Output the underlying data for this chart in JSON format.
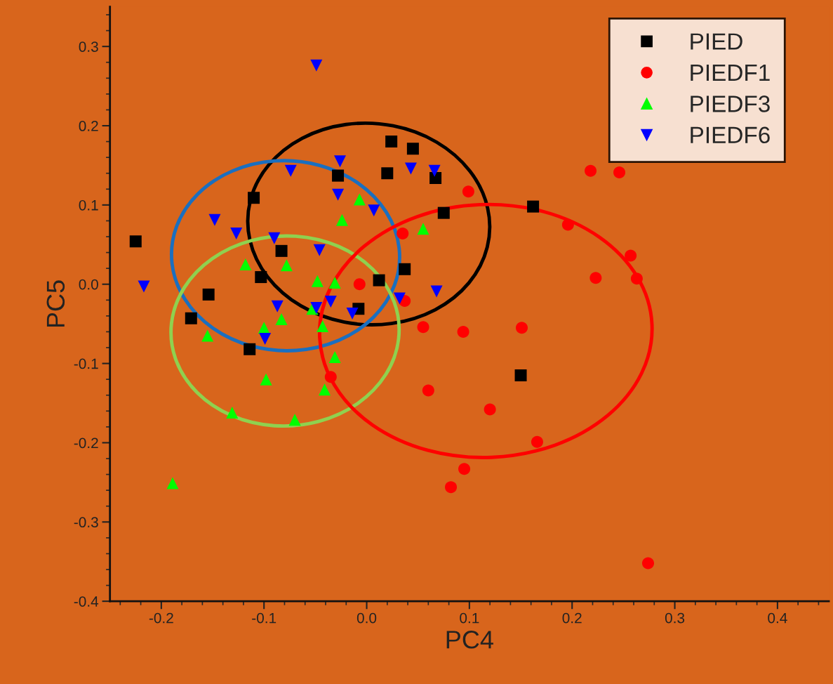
{
  "chart_data": {
    "type": "scatter",
    "xlabel": "PC4",
    "ylabel": "PC5",
    "xlim": [
      -0.25,
      0.45
    ],
    "ylim": [
      -0.4,
      0.35
    ],
    "xticks": [
      -0.2,
      -0.1,
      {
        "value": 0,
        "label": "0.0"
      },
      0.1,
      0.2,
      0.3,
      0.4
    ],
    "yticks": [
      -0.4,
      -0.3,
      -0.2,
      -0.1,
      {
        "value": 0,
        "label": "0.0"
      },
      0.1,
      0.2,
      0.3
    ],
    "grid": false,
    "legend": "top right",
    "series": [
      {
        "name": "PIED",
        "color": "#000000",
        "marker": "square",
        "x": [
          -0.225,
          -0.11,
          -0.083,
          -0.103,
          -0.154,
          -0.171,
          -0.114,
          -0.028,
          0.02,
          0.024,
          0.045,
          0.067,
          0.075,
          0.037,
          0.012,
          -0.008,
          0.15,
          0.162
        ],
        "values": [
          0.054,
          0.109,
          0.042,
          0.009,
          -0.013,
          -0.043,
          -0.082,
          0.137,
          0.14,
          0.18,
          0.171,
          0.134,
          0.09,
          0.019,
          0.005,
          -0.031,
          -0.115,
          0.098
        ]
      },
      {
        "name": "PIEDF1",
        "color": "#ff0000",
        "marker": "circle",
        "x": [
          0.099,
          0.035,
          -0.007,
          0.037,
          0.055,
          0.06,
          0.094,
          0.151,
          0.12,
          0.166,
          0.095,
          0.082,
          -0.035,
          0.196,
          0.218,
          0.246,
          0.257,
          0.263,
          0.223,
          0.274
        ],
        "values": [
          0.117,
          0.064,
          0.0,
          -0.021,
          -0.054,
          -0.134,
          -0.06,
          -0.055,
          -0.158,
          -0.199,
          -0.233,
          -0.256,
          -0.117,
          0.075,
          0.143,
          0.141,
          0.036,
          0.007,
          0.008,
          -0.352
        ]
      },
      {
        "name": "PIEDF3",
        "color": "#00ff00",
        "marker": "triangle",
        "x": [
          -0.007,
          -0.024,
          0.055,
          -0.118,
          -0.078,
          -0.048,
          -0.031,
          -0.1,
          -0.083,
          -0.155,
          -0.043,
          -0.053,
          -0.031,
          -0.098,
          -0.041,
          -0.131,
          -0.07,
          -0.189
        ],
        "values": [
          0.107,
          0.081,
          0.07,
          0.025,
          0.024,
          0.004,
          0.002,
          -0.055,
          -0.044,
          -0.065,
          -0.053,
          -0.031,
          -0.092,
          -0.12,
          -0.133,
          -0.162,
          -0.171,
          -0.251
        ]
      },
      {
        "name": "PIEDF6",
        "color": "#0000ff",
        "marker": "triangle_down",
        "x": [
          -0.049,
          -0.026,
          -0.074,
          0.043,
          0.066,
          -0.028,
          0.007,
          -0.148,
          -0.127,
          -0.09,
          -0.046,
          -0.217,
          -0.087,
          -0.049,
          -0.035,
          -0.099,
          -0.014,
          0.032,
          0.068
        ],
        "values": [
          0.276,
          0.155,
          0.143,
          0.146,
          0.143,
          0.113,
          0.093,
          0.081,
          0.064,
          0.058,
          0.043,
          -0.003,
          -0.028,
          -0.03,
          -0.022,
          -0.069,
          -0.037,
          -0.018,
          -0.009
        ]
      }
    ]
  }
}
